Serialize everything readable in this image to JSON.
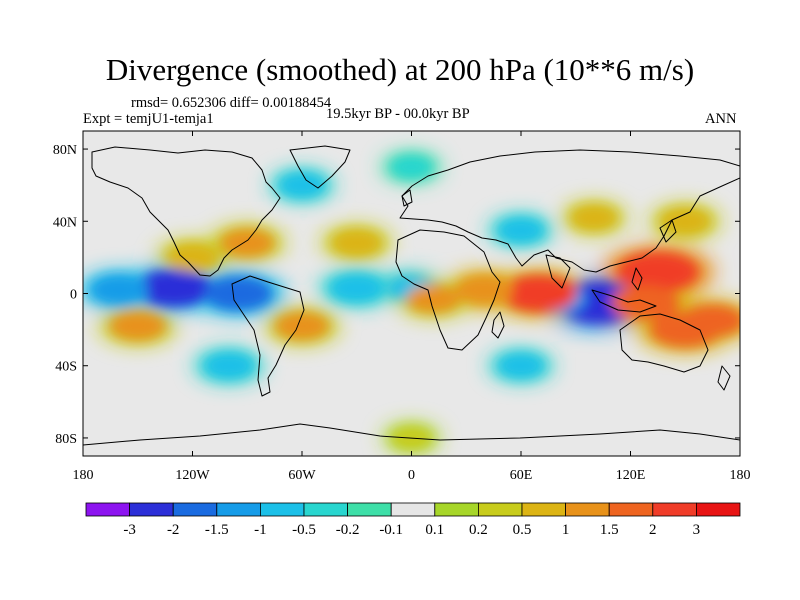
{
  "title": "Divergence (smoothed) at 200 hPa (10**6 m/s)",
  "stats": "rmsd= 0.652306 diff= 0.00188454",
  "experiment": "Expt = temjU1-temja1",
  "period": "19.5kyr BP - 00.0kyr BP",
  "season": "ANN",
  "lat_ticks": [
    "80N",
    "40N",
    "0",
    "40S",
    "80S"
  ],
  "lon_ticks": [
    "180",
    "120W",
    "60W",
    "0",
    "60E",
    "120E",
    "180"
  ],
  "colorbar": {
    "labels": [
      "-3",
      "-2",
      "-1.5",
      "-1",
      "-0.5",
      "-0.2",
      "-0.1",
      "0.1",
      "0.2",
      "0.5",
      "1",
      "1.5",
      "2",
      "3"
    ],
    "colors": [
      "#8d14f0",
      "#2c2fd8",
      "#1a6be0",
      "#169ce8",
      "#1cc0e8",
      "#28d6cf",
      "#3edfa8",
      "#e6e6e6",
      "#a7d629",
      "#c8cc1c",
      "#dcb414",
      "#e8921a",
      "#ee6420",
      "#f03c28",
      "#e81414"
    ]
  },
  "chart_data": {
    "type": "heatmap",
    "title": "Divergence (smoothed) at 200 hPa (10**6 m/s)",
    "units": "10**6 m/s",
    "variable": "divergence difference, 200 hPa",
    "lon_range": [
      -180,
      180
    ],
    "lat_range": [
      -90,
      90
    ],
    "levels": [
      -3,
      -2,
      -1.5,
      -1,
      -0.5,
      -0.2,
      -0.1,
      0.1,
      0.2,
      0.5,
      1,
      1.5,
      2,
      3
    ],
    "features": [
      {
        "lon": -130,
        "lat": 3,
        "value": -2.2
      },
      {
        "lon": -95,
        "lat": 0,
        "value": -1.8
      },
      {
        "lon": -160,
        "lat": 2,
        "value": -1.2
      },
      {
        "lon": -30,
        "lat": 3,
        "value": -1.0
      },
      {
        "lon": 0,
        "lat": 3,
        "value": -0.7
      },
      {
        "lon": 103,
        "lat": -5,
        "value": -2.8
      },
      {
        "lon": 80,
        "lat": -3,
        "value": -1.2
      },
      {
        "lon": 70,
        "lat": 0,
        "value": 2.2
      },
      {
        "lon": 40,
        "lat": 2,
        "value": 1.2
      },
      {
        "lon": 12,
        "lat": -3,
        "value": 1.0
      },
      {
        "lon": 135,
        "lat": 12,
        "value": 2.5
      },
      {
        "lon": 128,
        "lat": -5,
        "value": 1.8
      },
      {
        "lon": 150,
        "lat": -20,
        "value": 1.9
      },
      {
        "lon": 165,
        "lat": -15,
        "value": 1.5
      },
      {
        "lon": -150,
        "lat": -18,
        "value": 1.1
      },
      {
        "lon": -60,
        "lat": -18,
        "value": 1.0
      },
      {
        "lon": -120,
        "lat": 20,
        "value": 0.9
      },
      {
        "lon": -90,
        "lat": 28,
        "value": 1.0
      },
      {
        "lon": -30,
        "lat": 28,
        "value": 0.8
      },
      {
        "lon": 60,
        "lat": 35,
        "value": -0.6
      },
      {
        "lon": 100,
        "lat": 42,
        "value": 0.6
      },
      {
        "lon": 150,
        "lat": 40,
        "value": 0.8
      },
      {
        "lon": -60,
        "lat": 60,
        "value": -0.6
      },
      {
        "lon": 0,
        "lat": 70,
        "value": -0.4
      },
      {
        "lon": -100,
        "lat": -40,
        "value": -0.8
      },
      {
        "lon": 60,
        "lat": -40,
        "value": -0.6
      },
      {
        "lon": 0,
        "lat": -80,
        "value": 0.3
      }
    ]
  }
}
